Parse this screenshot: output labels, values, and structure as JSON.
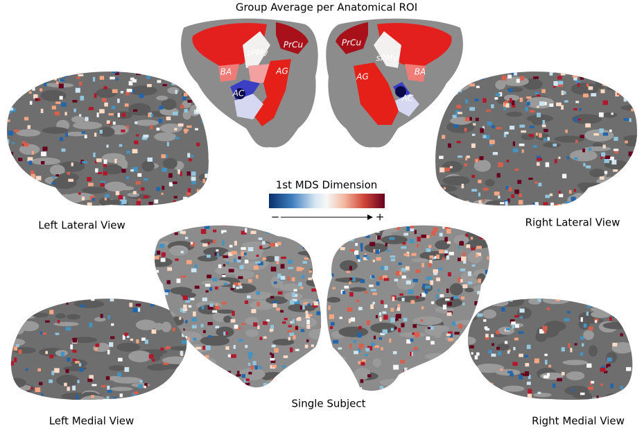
{
  "title": "Group Average per Anatomical ROI",
  "group_average": {
    "left_labels": [
      "PrCu",
      "sPMv",
      "BA",
      "AG",
      "AC"
    ],
    "right_labels": [
      "PrCu",
      "sPMv",
      "BA",
      "AG",
      "AC"
    ]
  },
  "colorbar": {
    "label": "1st MDS Dimension",
    "min_label": "−",
    "max_label": "+"
  },
  "views": {
    "left_lateral": "Left Lateral View",
    "right_lateral": "Right Lateral View",
    "left_medial": "Left Medial View",
    "right_medial": "Right Medial View"
  },
  "single_subject": "Single Subject"
}
